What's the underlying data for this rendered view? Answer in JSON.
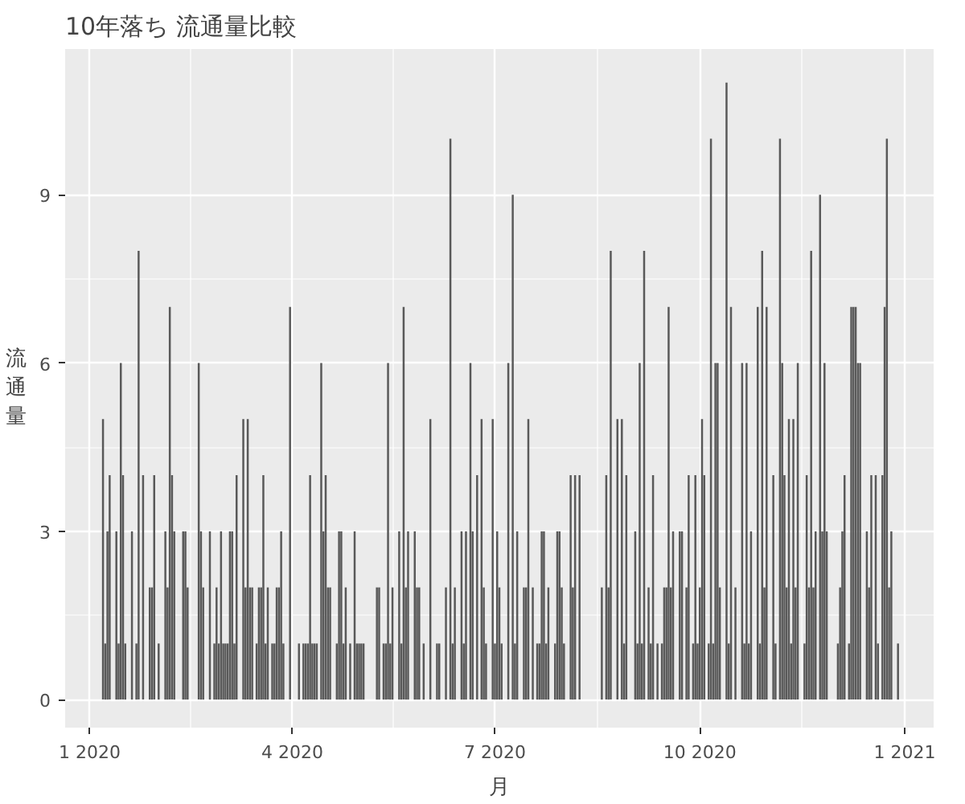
{
  "chart_data": {
    "type": "bar",
    "title": "10年落ち 流通量比較",
    "xlabel": "月",
    "ylabel": "流通量",
    "color": "#595959",
    "grid": true,
    "xlim": [
      "2019-12-21",
      "2021-01-14"
    ],
    "xticks": [
      {
        "value": "2020-01-01",
        "label": "1 2020"
      },
      {
        "value": "2020-04-01",
        "label": "4 2020"
      },
      {
        "value": "2020-07-01",
        "label": "7 2020"
      },
      {
        "value": "2020-10-01",
        "label": "10 2020"
      },
      {
        "value": "2021-01-01",
        "label": "1 2021"
      }
    ],
    "ylim": [
      -0.5,
      11.6
    ],
    "yticks": [
      0,
      3,
      6,
      9
    ],
    "x": [
      "2020-01-07",
      "2020-01-08",
      "2020-01-09",
      "2020-01-10",
      "2020-01-13",
      "2020-01-14",
      "2020-01-15",
      "2020-01-16",
      "2020-01-17",
      "2020-01-20",
      "2020-01-22",
      "2020-01-23",
      "2020-01-25",
      "2020-01-28",
      "2020-01-29",
      "2020-01-30",
      "2020-02-01",
      "2020-02-04",
      "2020-02-05",
      "2020-02-06",
      "2020-02-07",
      "2020-02-08",
      "2020-02-12",
      "2020-02-13",
      "2020-02-14",
      "2020-02-19",
      "2020-02-20",
      "2020-02-21",
      "2020-02-24",
      "2020-02-26",
      "2020-02-27",
      "2020-02-28",
      "2020-02-29",
      "2020-03-01",
      "2020-03-02",
      "2020-03-03",
      "2020-03-04",
      "2020-03-05",
      "2020-03-06",
      "2020-03-07",
      "2020-03-10",
      "2020-03-11",
      "2020-03-12",
      "2020-03-13",
      "2020-03-14",
      "2020-03-16",
      "2020-03-17",
      "2020-03-18",
      "2020-03-19",
      "2020-03-20",
      "2020-03-21",
      "2020-03-23",
      "2020-03-24",
      "2020-03-25",
      "2020-03-26",
      "2020-03-27",
      "2020-03-28",
      "2020-03-31",
      "2020-04-04",
      "2020-04-06",
      "2020-04-07",
      "2020-04-08",
      "2020-04-09",
      "2020-04-10",
      "2020-04-11",
      "2020-04-12",
      "2020-04-14",
      "2020-04-15",
      "2020-04-16",
      "2020-04-17",
      "2020-04-18",
      "2020-04-21",
      "2020-04-22",
      "2020-04-23",
      "2020-04-24",
      "2020-04-25",
      "2020-04-27",
      "2020-04-29",
      "2020-04-30",
      "2020-05-01",
      "2020-05-02",
      "2020-05-03",
      "2020-05-09",
      "2020-05-10",
      "2020-05-12",
      "2020-05-13",
      "2020-05-14",
      "2020-05-15",
      "2020-05-16",
      "2020-05-19",
      "2020-05-20",
      "2020-05-21",
      "2020-05-22",
      "2020-05-23",
      "2020-05-26",
      "2020-05-27",
      "2020-05-28",
      "2020-05-30",
      "2020-06-02",
      "2020-06-05",
      "2020-06-06",
      "2020-06-09",
      "2020-06-11",
      "2020-06-12",
      "2020-06-13",
      "2020-06-16",
      "2020-06-17",
      "2020-06-18",
      "2020-06-20",
      "2020-06-21",
      "2020-06-23",
      "2020-06-25",
      "2020-06-26",
      "2020-06-27",
      "2020-06-30",
      "2020-07-01",
      "2020-07-02",
      "2020-07-03",
      "2020-07-04",
      "2020-07-07",
      "2020-07-09",
      "2020-07-10",
      "2020-07-11",
      "2020-07-14",
      "2020-07-15",
      "2020-07-16",
      "2020-07-18",
      "2020-07-20",
      "2020-07-21",
      "2020-07-22",
      "2020-07-23",
      "2020-07-24",
      "2020-07-25",
      "2020-07-28",
      "2020-07-29",
      "2020-07-30",
      "2020-07-31",
      "2020-08-01",
      "2020-08-04",
      "2020-08-05",
      "2020-08-06",
      "2020-08-08",
      "2020-08-18",
      "2020-08-20",
      "2020-08-21",
      "2020-08-22",
      "2020-08-25",
      "2020-08-27",
      "2020-08-28",
      "2020-08-29",
      "2020-09-02",
      "2020-09-03",
      "2020-09-04",
      "2020-09-05",
      "2020-09-06",
      "2020-09-08",
      "2020-09-09",
      "2020-09-10",
      "2020-09-12",
      "2020-09-14",
      "2020-09-15",
      "2020-09-16",
      "2020-09-17",
      "2020-09-18",
      "2020-09-19",
      "2020-09-22",
      "2020-09-23",
      "2020-09-25",
      "2020-09-26",
      "2020-09-28",
      "2020-09-29",
      "2020-09-30",
      "2020-10-01",
      "2020-10-02",
      "2020-10-03",
      "2020-10-05",
      "2020-10-06",
      "2020-10-07",
      "2020-10-08",
      "2020-10-09",
      "2020-10-10",
      "2020-10-13",
      "2020-10-14",
      "2020-10-15",
      "2020-10-17",
      "2020-10-20",
      "2020-10-21",
      "2020-10-22",
      "2020-10-23",
      "2020-10-24",
      "2020-10-27",
      "2020-10-28",
      "2020-10-29",
      "2020-10-30",
      "2020-10-31",
      "2020-11-03",
      "2020-11-04",
      "2020-11-06",
      "2020-11-07",
      "2020-11-08",
      "2020-11-09",
      "2020-11-10",
      "2020-11-11",
      "2020-11-12",
      "2020-11-13",
      "2020-11-14",
      "2020-11-17",
      "2020-11-18",
      "2020-11-19",
      "2020-11-20",
      "2020-11-21",
      "2020-11-22",
      "2020-11-24",
      "2020-11-25",
      "2020-11-26",
      "2020-11-27",
      "2020-12-02",
      "2020-12-03",
      "2020-12-04",
      "2020-12-05",
      "2020-12-07",
      "2020-12-08",
      "2020-12-09",
      "2020-12-10",
      "2020-12-11",
      "2020-12-12",
      "2020-12-15",
      "2020-12-16",
      "2020-12-17",
      "2020-12-19",
      "2020-12-20",
      "2020-12-22",
      "2020-12-23",
      "2020-12-24",
      "2020-12-25",
      "2020-12-26",
      "2020-12-29"
    ],
    "values": [
      5,
      1,
      3,
      4,
      3,
      1,
      6,
      4,
      1,
      3,
      1,
      8,
      4,
      2,
      2,
      4,
      1,
      3,
      2,
      7,
      4,
      3,
      3,
      3,
      2,
      6,
      3,
      2,
      3,
      1,
      2,
      1,
      3,
      1,
      1,
      1,
      3,
      3,
      1,
      4,
      5,
      2,
      5,
      2,
      2,
      1,
      2,
      2,
      4,
      1,
      2,
      1,
      1,
      2,
      2,
      3,
      1,
      7,
      1,
      1,
      1,
      1,
      4,
      1,
      1,
      1,
      6,
      3,
      4,
      2,
      2,
      1,
      3,
      3,
      1,
      2,
      1,
      3,
      1,
      1,
      1,
      1,
      2,
      2,
      1,
      1,
      6,
      1,
      2,
      3,
      1,
      7,
      2,
      3,
      3,
      2,
      2,
      1,
      5,
      1,
      1,
      2,
      10,
      1,
      2,
      3,
      1,
      3,
      6,
      3,
      4,
      5,
      2,
      1,
      5,
      1,
      3,
      2,
      1,
      6,
      9,
      1,
      3,
      2,
      2,
      5,
      2,
      1,
      1,
      3,
      3,
      1,
      2,
      1,
      3,
      3,
      2,
      1,
      4,
      2,
      4,
      4,
      2,
      4,
      2,
      8,
      5,
      5,
      1,
      4,
      3,
      1,
      6,
      1,
      8,
      2,
      1,
      4,
      1,
      1,
      2,
      2,
      7,
      2,
      3,
      3,
      3,
      2,
      4,
      1,
      4,
      1,
      2,
      5,
      4,
      1,
      10,
      1,
      6,
      6,
      2,
      11,
      1,
      7,
      2,
      6,
      1,
      6,
      1,
      3,
      7,
      1,
      8,
      2,
      7,
      4,
      1,
      10,
      6,
      4,
      2,
      5,
      1,
      5,
      2,
      6,
      1,
      4,
      2,
      8,
      2,
      3,
      9,
      3,
      6,
      3,
      1,
      2,
      3,
      4,
      1,
      7,
      7,
      7,
      6,
      6,
      3,
      2,
      4,
      4,
      1,
      4,
      7,
      10,
      2,
      3,
      1
    ]
  }
}
